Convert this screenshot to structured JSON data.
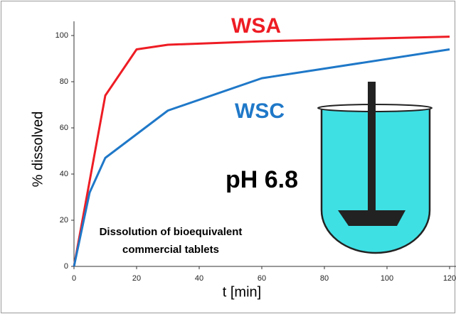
{
  "chart_data": {
    "type": "line",
    "xlabel": "t [min]",
    "ylabel": "% dissolved",
    "annotations": [
      "pH 6.8",
      "Dissolution of bioequivalent",
      "commercial tablets"
    ],
    "xlim": [
      0,
      120
    ],
    "xticks": [
      0,
      20,
      40,
      60,
      80,
      100,
      120
    ],
    "ylim": [
      0,
      100
    ],
    "yticks": [
      0,
      20,
      40,
      60,
      80,
      100
    ],
    "series": [
      {
        "name": "WSA",
        "color": "#ee1c24",
        "x": [
          0,
          10,
          20,
          30,
          60,
          120
        ],
        "values": [
          0,
          74,
          94,
          96,
          97.5,
          99.5
        ]
      },
      {
        "name": "WSC",
        "color": "#1f78c8",
        "x": [
          0,
          5,
          10,
          30,
          60,
          120
        ],
        "values": [
          0,
          32,
          47,
          67.5,
          81.5,
          94
        ]
      }
    ]
  }
}
